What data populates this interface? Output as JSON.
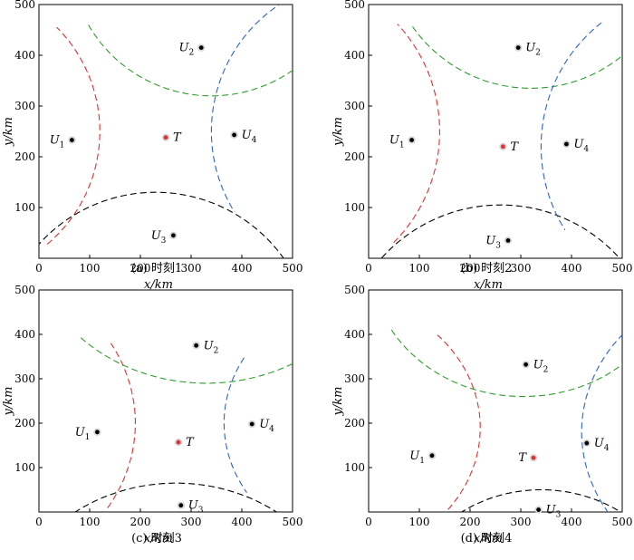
{
  "chart_data": [
    {
      "type": "scatter",
      "caption": "(a) 时刻1",
      "xlabel": "x",
      "ylabel": "y",
      "unit": "/km",
      "xlim": [
        0,
        500
      ],
      "ylim": [
        0,
        500
      ],
      "xticks": [
        "0",
        "100",
        "200",
        "300",
        "400",
        "500"
      ],
      "yticks": [
        "100",
        "200",
        "300",
        "400",
        "500"
      ],
      "points": [
        {
          "label": "U",
          "sub": "1",
          "x": 65,
          "y": 233,
          "color": "#000000",
          "label_side": "left"
        },
        {
          "label": "U",
          "sub": "2",
          "x": 320,
          "y": 415,
          "color": "#000000",
          "label_side": "left"
        },
        {
          "label": "U",
          "sub": "3",
          "x": 265,
          "y": 45,
          "color": "#000000",
          "label_side": "left"
        },
        {
          "label": "U",
          "sub": "4",
          "x": 385,
          "y": 243,
          "color": "#000000",
          "label_side": "right"
        },
        {
          "label": "T",
          "sub": "",
          "x": 250,
          "y": 238,
          "color": "#e03030",
          "label_side": "right"
        }
      ],
      "curves": [
        {
          "color": "#e03030",
          "cx": -170,
          "cy": 250,
          "r": 290,
          "from": -50,
          "to": 45
        },
        {
          "color": "#2b9e2b",
          "cx": 340,
          "cy": 600,
          "r": 280,
          "from": 210,
          "to": 335
        },
        {
          "color": "#000000",
          "cx": 230,
          "cy": -180,
          "r": 310,
          "from": 28,
          "to": 150
        },
        {
          "color": "#2f62c8",
          "cx": 640,
          "cy": 250,
          "r": 300,
          "from": 118,
          "to": 212
        }
      ]
    },
    {
      "type": "scatter",
      "caption": "(b) 时刻2",
      "xlabel": "x",
      "ylabel": "y",
      "unit": "/km",
      "xlim": [
        0,
        500
      ],
      "ylim": [
        0,
        500
      ],
      "xticks": [
        "0",
        "100",
        "200",
        "300",
        "400",
        "500"
      ],
      "yticks": [
        "100",
        "200",
        "300",
        "400",
        "500"
      ],
      "points": [
        {
          "label": "U",
          "sub": "1",
          "x": 85,
          "y": 233,
          "color": "#000000",
          "label_side": "left"
        },
        {
          "label": "U",
          "sub": "2",
          "x": 295,
          "y": 415,
          "color": "#000000",
          "label_side": "right"
        },
        {
          "label": "U",
          "sub": "3",
          "x": 275,
          "y": 35,
          "color": "#000000",
          "label_side": "left"
        },
        {
          "label": "U",
          "sub": "4",
          "x": 390,
          "y": 225,
          "color": "#000000",
          "label_side": "right"
        },
        {
          "label": "T",
          "sub": "",
          "x": 265,
          "y": 220,
          "color": "#e03030",
          "label_side": "right"
        }
      ],
      "curves": [
        {
          "color": "#e03030",
          "cx": -170,
          "cy": 250,
          "r": 310,
          "from": -45,
          "to": 43
        },
        {
          "color": "#2b9e2b",
          "cx": 320,
          "cy": 620,
          "r": 285,
          "from": 215,
          "to": 330
        },
        {
          "color": "#000000",
          "cx": 260,
          "cy": -210,
          "r": 315,
          "from": 25,
          "to": 155
        },
        {
          "color": "#2f62c8",
          "cx": 650,
          "cy": 220,
          "r": 310,
          "from": 128,
          "to": 212
        }
      ]
    },
    {
      "type": "scatter",
      "caption": "(c) 时刻3",
      "xlabel": "x",
      "ylabel": "y",
      "unit": "/km",
      "xlim": [
        0,
        500
      ],
      "ylim": [
        0,
        500
      ],
      "xticks": [
        "0",
        "100",
        "200",
        "300",
        "400",
        "500"
      ],
      "yticks": [
        "100",
        "200",
        "300",
        "400",
        "500"
      ],
      "points": [
        {
          "label": "U",
          "sub": "1",
          "x": 115,
          "y": 180,
          "color": "#000000",
          "label_side": "left"
        },
        {
          "label": "U",
          "sub": "2",
          "x": 310,
          "y": 375,
          "color": "#000000",
          "label_side": "right"
        },
        {
          "label": "U",
          "sub": "3",
          "x": 280,
          "y": 15,
          "color": "#000000",
          "label_side": "right"
        },
        {
          "label": "U",
          "sub": "4",
          "x": 420,
          "y": 198,
          "color": "#000000",
          "label_side": "right"
        },
        {
          "label": "T",
          "sub": "",
          "x": 275,
          "y": 157,
          "color": "#e03030",
          "label_side": "right"
        }
      ],
      "curves": [
        {
          "color": "#e03030",
          "cx": -170,
          "cy": 200,
          "r": 360,
          "from": -32,
          "to": 30
        },
        {
          "color": "#2b9e2b",
          "cx": 330,
          "cy": 640,
          "r": 350,
          "from": 225,
          "to": 320
        },
        {
          "color": "#000000",
          "cx": 270,
          "cy": -270,
          "r": 335,
          "from": 20,
          "to": 160
        },
        {
          "color": "#2f62c8",
          "cx": 660,
          "cy": 200,
          "r": 295,
          "from": 150,
          "to": 212
        }
      ]
    },
    {
      "type": "scatter",
      "caption": "(d) 时刻4",
      "xlabel": "x",
      "ylabel": "y",
      "unit": "/km",
      "xlim": [
        0,
        500
      ],
      "ylim": [
        0,
        500
      ],
      "xticks": [
        "0",
        "100",
        "200",
        "300",
        "400",
        "500"
      ],
      "yticks": [
        "100",
        "200",
        "300",
        "400",
        "500"
      ],
      "points": [
        {
          "label": "U",
          "sub": "1",
          "x": 125,
          "y": 127,
          "color": "#000000",
          "label_side": "left"
        },
        {
          "label": "U",
          "sub": "2",
          "x": 310,
          "y": 332,
          "color": "#000000",
          "label_side": "right"
        },
        {
          "label": "U",
          "sub": "3",
          "x": 335,
          "y": 5,
          "color": "#000000",
          "label_side": "right"
        },
        {
          "label": "U",
          "sub": "4",
          "x": 430,
          "y": 155,
          "color": "#000000",
          "label_side": "right"
        },
        {
          "label": "T",
          "sub": "",
          "x": 325,
          "y": 122,
          "color": "#e03030",
          "label_side": "left"
        }
      ],
      "curves": [
        {
          "color": "#e03030",
          "cx": -80,
          "cy": 190,
          "r": 300,
          "from": -38,
          "to": 44
        },
        {
          "color": "#2b9e2b",
          "cx": 305,
          "cy": 560,
          "r": 300,
          "from": 210,
          "to": 330
        },
        {
          "color": "#000000",
          "cx": 340,
          "cy": -220,
          "r": 270,
          "from": 20,
          "to": 160
        },
        {
          "color": "#2f62c8",
          "cx": 760,
          "cy": 180,
          "r": 340,
          "from": 122,
          "to": 213
        }
      ]
    }
  ]
}
